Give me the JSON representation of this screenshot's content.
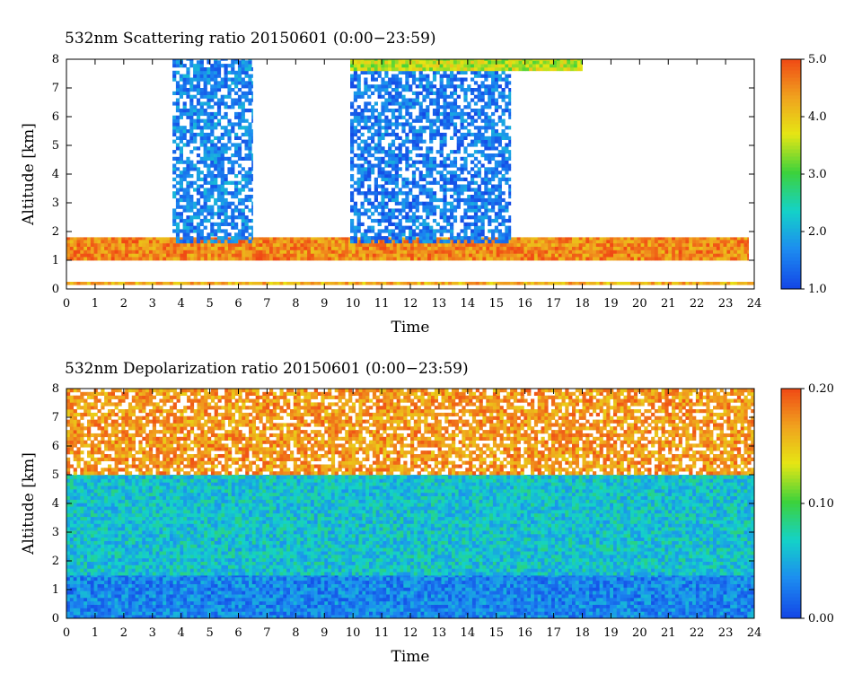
{
  "chart_data": [
    {
      "type": "heatmap",
      "title": "532nm Scattering ratio  20150601 (0:00−23:59)",
      "xlabel": "Time",
      "ylabel": "Altitude [km]",
      "xlim": [
        0,
        24
      ],
      "ylim": [
        0,
        8
      ],
      "x_ticks": [
        "0",
        "1",
        "2",
        "3",
        "4",
        "5",
        "6",
        "7",
        "8",
        "9",
        "10",
        "11",
        "12",
        "13",
        "14",
        "15",
        "16",
        "17",
        "18",
        "19",
        "20",
        "21",
        "22",
        "23",
        "24"
      ],
      "y_ticks": [
        "0",
        "1",
        "2",
        "3",
        "4",
        "5",
        "6",
        "7",
        "8"
      ],
      "colorbar": {
        "min": 1.0,
        "max": 5.0,
        "ticks": [
          "1.0",
          "2.0",
          "3.0",
          "4.0",
          "5.0"
        ],
        "colors": [
          "#1448e6",
          "#1c8cf0",
          "#14d2c8",
          "#3cd23c",
          "#e6e614",
          "#f0a01e",
          "#f04614"
        ]
      },
      "features": [
        {
          "description": "near-surface thin layer",
          "time": [
            0,
            24
          ],
          "altitude_km": [
            0.15,
            0.25
          ],
          "value": 4.2
        },
        {
          "description": "boundary layer top",
          "time": [
            0,
            23.8
          ],
          "altitude_km": [
            1.0,
            1.8
          ],
          "value": 4.5
        },
        {
          "description": "cloud/aerosol column",
          "time": [
            3.7,
            6.5
          ],
          "altitude_km": [
            1.6,
            8.0
          ],
          "value": 1.6
        },
        {
          "description": "cloud/aerosol column",
          "time": [
            9.9,
            15.5
          ],
          "altitude_km": [
            1.6,
            8.0
          ],
          "value": 1.5
        },
        {
          "description": "upper layer",
          "time": [
            9.9,
            18.0
          ],
          "altitude_km": [
            7.6,
            8.0
          ],
          "value": 3.5
        }
      ]
    },
    {
      "type": "heatmap",
      "title": "532nm Depolarization ratio  20150601 (0:00−23:59)",
      "xlabel": "Time",
      "ylabel": "Altitude [km]",
      "xlim": [
        0,
        24
      ],
      "ylim": [
        0,
        8
      ],
      "x_ticks": [
        "0",
        "1",
        "2",
        "3",
        "4",
        "5",
        "6",
        "7",
        "8",
        "9",
        "10",
        "11",
        "12",
        "13",
        "14",
        "15",
        "16",
        "17",
        "18",
        "19",
        "20",
        "21",
        "22",
        "23",
        "24"
      ],
      "y_ticks": [
        "0",
        "1",
        "2",
        "3",
        "4",
        "5",
        "6",
        "7",
        "8"
      ],
      "colorbar": {
        "min": 0.0,
        "max": 0.2,
        "ticks": [
          "0.00",
          "0.10",
          "0.20"
        ],
        "colors": [
          "#1448e6",
          "#1c8cf0",
          "#14d2c8",
          "#3cd23c",
          "#e6e614",
          "#f0a01e",
          "#f04614"
        ]
      },
      "features": [
        {
          "description": "boundary layer low depolarization",
          "time": [
            0,
            24
          ],
          "altitude_km": [
            0.0,
            1.5
          ],
          "value": 0.03
        },
        {
          "description": "mid troposphere",
          "time": [
            0,
            24
          ],
          "altitude_km": [
            1.5,
            5.0
          ],
          "value": 0.06
        },
        {
          "description": "upper troposphere high depolarization",
          "time": [
            0,
            24
          ],
          "altitude_km": [
            5.0,
            8.0
          ],
          "value": 0.17
        }
      ]
    }
  ]
}
